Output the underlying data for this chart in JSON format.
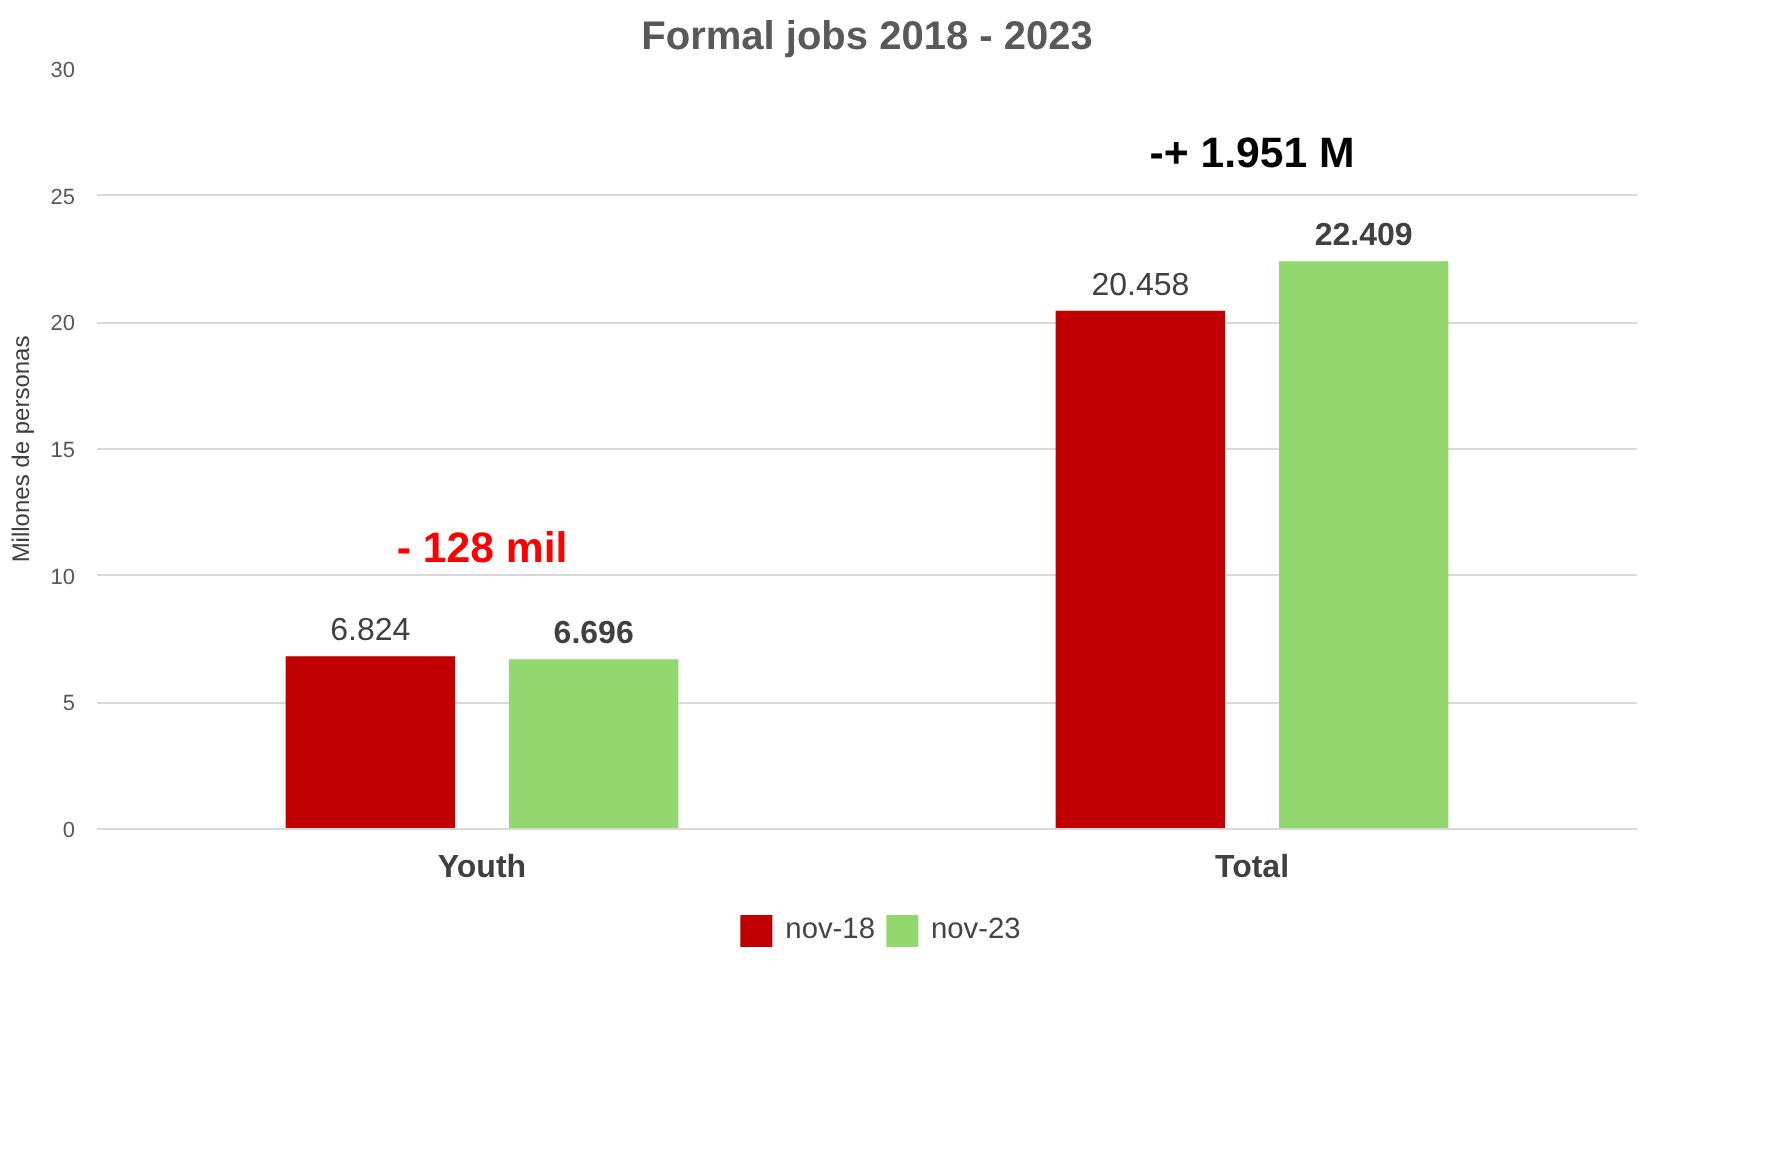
{
  "chart_data": {
    "type": "bar",
    "title": "Formal jobs 2018 - 2023",
    "ylabel": "Millones de personas",
    "categories": [
      "Youth",
      "Total"
    ],
    "series": [
      {
        "name": "nov-18",
        "color": "#c00000",
        "values": [
          6.824,
          20.458
        ],
        "value_labels": [
          "6.824",
          "20.458"
        ]
      },
      {
        "name": "nov-23",
        "color": "#92d86f",
        "values": [
          6.696,
          22.409
        ],
        "value_labels": [
          "6.696",
          "22.409"
        ]
      }
    ],
    "ylim": [
      0,
      30
    ],
    "yticks": [
      0,
      5,
      10,
      15,
      20,
      25,
      30
    ],
    "grid": "y",
    "legend": "bottom",
    "annotations": [
      "- 128 mil",
      "-+ 1.951 M"
    ]
  }
}
